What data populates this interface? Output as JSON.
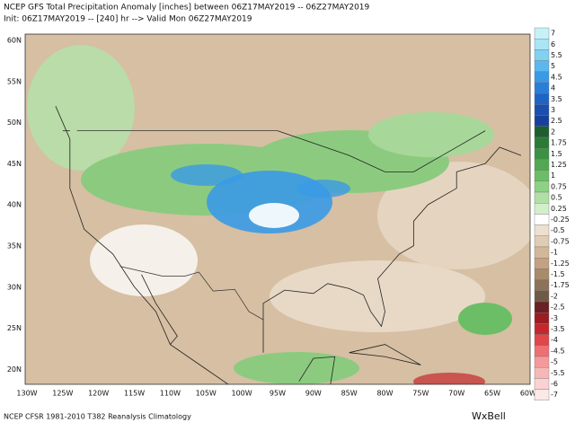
{
  "header": {
    "title": "NCEP GFS Total Precipitation Anomaly [inches] between 06Z17MAY2019 -- 06Z27MAY2019",
    "subtitle": "Init: 06Z17MAY2019 -- [240] hr --> Valid Mon 06Z27MAY2019"
  },
  "map": {
    "lat_labels": [
      "60N",
      "55N",
      "50N",
      "45N",
      "40N",
      "35N",
      "30N",
      "25N",
      "20N"
    ],
    "lon_labels": [
      "130W",
      "125W",
      "120W",
      "115W",
      "110W",
      "105W",
      "100W",
      "95W",
      "90W",
      "85W",
      "80W",
      "75W",
      "70W",
      "65W",
      "60W"
    ]
  },
  "colorbar": {
    "labels": [
      "7",
      "6",
      "5.5",
      "5",
      "4.5",
      "4",
      "3.5",
      "3",
      "2.5",
      "2",
      "1.75",
      "1.5",
      "1.25",
      "1",
      "0.75",
      "0.5",
      "0.25",
      "-0.25",
      "-0.5",
      "-0.75",
      "-1",
      "-1.25",
      "-1.5",
      "-1.75",
      "-2",
      "-2.5",
      "-3",
      "-3.5",
      "-4",
      "-4.5",
      "-5",
      "-5.5",
      "-6",
      "-7"
    ],
    "colors": [
      "#c6f2f7",
      "#a9e5f5",
      "#80d1f2",
      "#5ab8ee",
      "#3a9ae6",
      "#2a7ed8",
      "#1e63c6",
      "#1a4fb0",
      "#16409a",
      "#1e5e2e",
      "#2b7a36",
      "#3b9243",
      "#52a852",
      "#6cbe66",
      "#8dd185",
      "#b0e0a6",
      "#d2efca",
      "#ffffff",
      "#ede0d0",
      "#e0ccb4",
      "#d2b89a",
      "#c2a282",
      "#a88a6c",
      "#8c7258",
      "#6e5a46",
      "#6a2024",
      "#9a1d22",
      "#c3282c",
      "#e0464a",
      "#ee7073",
      "#f5999a",
      "#f8b7b7",
      "#fbd2d2",
      "#fde8e8"
    ]
  },
  "footer": {
    "note": "NCEP CFSR 1981-2010 T382 Reanalysis Climatology",
    "logo": "WxBell"
  }
}
